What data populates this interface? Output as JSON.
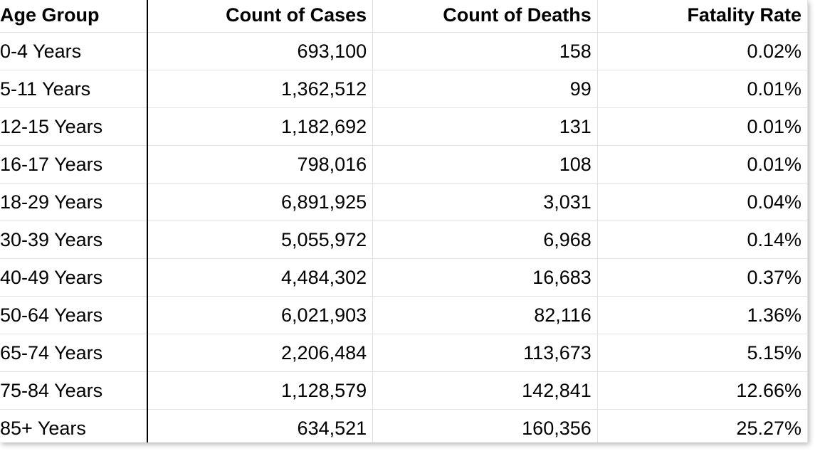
{
  "table": {
    "columns": [
      "Age Group",
      "Count of Cases",
      "Count of Deaths",
      "Fatality Rate"
    ],
    "rows": [
      {
        "age_group": "0-4 Years",
        "cases": "693,100",
        "deaths": "158",
        "rate": "0.02%"
      },
      {
        "age_group": "5-11 Years",
        "cases": "1,362,512",
        "deaths": "99",
        "rate": "0.01%"
      },
      {
        "age_group": "12-15 Years",
        "cases": "1,182,692",
        "deaths": "131",
        "rate": "0.01%"
      },
      {
        "age_group": "16-17 Years",
        "cases": "798,016",
        "deaths": "108",
        "rate": "0.01%"
      },
      {
        "age_group": "18-29 Years",
        "cases": "6,891,925",
        "deaths": "3,031",
        "rate": "0.04%"
      },
      {
        "age_group": "30-39 Years",
        "cases": "5,055,972",
        "deaths": "6,968",
        "rate": "0.14%"
      },
      {
        "age_group": "40-49 Years",
        "cases": "4,484,302",
        "deaths": "16,683",
        "rate": "0.37%"
      },
      {
        "age_group": "50-64 Years",
        "cases": "6,021,903",
        "deaths": "82,116",
        "rate": "1.36%"
      },
      {
        "age_group": "65-74 Years",
        "cases": "2,206,484",
        "deaths": "113,673",
        "rate": "5.15%"
      },
      {
        "age_group": "75-84 Years",
        "cases": "1,128,579",
        "deaths": "142,841",
        "rate": "12.66%"
      },
      {
        "age_group": "85+ Years",
        "cases": "634,521",
        "deaths": "160,356",
        "rate": "25.27%"
      }
    ]
  },
  "colors": {
    "gridline": "#e2e2e2",
    "frozen_column_divider": "#000000",
    "text": "#000000",
    "background": "#ffffff"
  }
}
